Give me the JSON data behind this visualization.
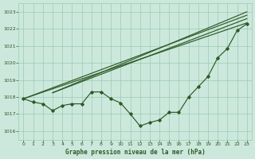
{
  "xlabel": "Graphe pression niveau de la mer (hPa)",
  "bg_color": "#cce8dc",
  "grid_color": "#99ccb3",
  "line_color": "#2d5a27",
  "xlim": [
    -0.5,
    23.5
  ],
  "ylim": [
    1015.5,
    1023.5
  ],
  "yticks": [
    1016,
    1017,
    1018,
    1019,
    1020,
    1021,
    1022,
    1023
  ],
  "xticks": [
    0,
    1,
    2,
    3,
    4,
    5,
    6,
    7,
    8,
    9,
    10,
    11,
    12,
    13,
    14,
    15,
    16,
    17,
    18,
    19,
    20,
    21,
    22,
    23
  ],
  "main_line": [
    1017.9,
    1017.7,
    1017.6,
    1017.2,
    1017.5,
    1017.6,
    1017.6,
    1018.3,
    1018.3,
    1017.9,
    1017.65,
    1017.0,
    1016.3,
    1016.5,
    1016.65,
    1017.1,
    1017.1,
    1018.0,
    1018.6,
    1019.2,
    1020.3,
    1020.85,
    1021.9,
    1022.3
  ],
  "straight_lines": [
    {
      "x0": 0,
      "y0": 1017.9,
      "x1": 23,
      "y1": 1022.35
    },
    {
      "x0": 0,
      "y0": 1017.9,
      "x1": 23,
      "y1": 1022.8
    },
    {
      "x0": 3,
      "y0": 1018.25,
      "x1": 23,
      "y1": 1022.6
    },
    {
      "x0": 3,
      "y0": 1018.25,
      "x1": 23,
      "y1": 1023.0
    }
  ]
}
